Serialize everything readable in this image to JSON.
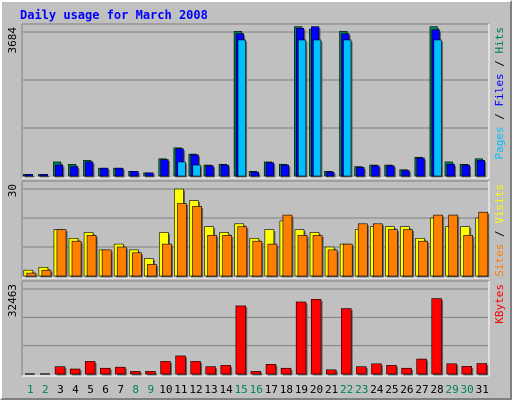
{
  "title": "Daily usage for March 2008",
  "colors": {
    "title": "#0000ff",
    "hits": "#00805c",
    "files": "#0000ff",
    "pages": "#00c0ff",
    "visits": "#ffff00",
    "sites": "#ff8000",
    "kbytes": "#ff0000",
    "weekday_label": "#000000",
    "weekend_label": "#00805c"
  },
  "panels": {
    "hits_files_pages": {
      "max_label": "3684",
      "legend": [
        {
          "text": "Pages",
          "color": "#00c0ff"
        },
        {
          "text": " / ",
          "color": "#000000"
        },
        {
          "text": "Files",
          "color": "#0000ff"
        },
        {
          "text": " / ",
          "color": "#000000"
        },
        {
          "text": "Hits",
          "color": "#00805c"
        }
      ]
    },
    "visits_sites": {
      "max_label": "30",
      "legend": [
        {
          "text": "Sites",
          "color": "#ff8000"
        },
        {
          "text": " / ",
          "color": "#000000"
        },
        {
          "text": "Visits",
          "color": "#ffff00"
        }
      ]
    },
    "kbytes": {
      "max_label": "32463",
      "legend": [
        {
          "text": "KBytes",
          "color": "#ff0000"
        }
      ]
    }
  },
  "chart_data": {
    "type": "bar",
    "title": "Daily usage for March 2008",
    "categories": [
      "1",
      "2",
      "3",
      "4",
      "5",
      "6",
      "7",
      "8",
      "9",
      "10",
      "11",
      "12",
      "13",
      "14",
      "15",
      "16",
      "17",
      "18",
      "19",
      "20",
      "21",
      "22",
      "23",
      "24",
      "25",
      "26",
      "27",
      "28",
      "29",
      "30",
      "31"
    ],
    "weekend_days": [
      "1",
      "2",
      "8",
      "9",
      "15",
      "16",
      "22",
      "23",
      "29",
      "30"
    ],
    "panels": [
      {
        "name": "Hits / Files / Pages",
        "ylim": [
          0,
          3684
        ],
        "series": [
          {
            "name": "Hits",
            "values": [
              40,
              40,
              360,
              300,
              400,
              200,
              200,
              120,
              80,
              440,
              720,
              560,
              280,
              300,
              3700,
              120,
              360,
              300,
              3820,
              3760,
              120,
              3700,
              240,
              280,
              280,
              160,
              480,
              3820,
              360,
              300,
              440
            ]
          },
          {
            "name": "Files",
            "values": [
              40,
              40,
              280,
              240,
              360,
              200,
              200,
              120,
              80,
              420,
              700,
              540,
              260,
              280,
              3640,
              100,
              340,
              280,
              3780,
              3820,
              100,
              3640,
              220,
              260,
              260,
              140,
              460,
              3740,
              300,
              280,
              400
            ]
          },
          {
            "name": "Pages",
            "values": [
              0,
              0,
              0,
              0,
              0,
              0,
              0,
              0,
              0,
              0,
              360,
              280,
              0,
              0,
              3480,
              0,
              0,
              0,
              3480,
              3480,
              0,
              3480,
              0,
              0,
              0,
              0,
              0,
              3480,
              0,
              0,
              0
            ]
          }
        ]
      },
      {
        "name": "Sites / Visits",
        "ylim": [
          0,
          30
        ],
        "series": [
          {
            "name": "Visits",
            "values": [
              2,
              3,
              16,
              13,
              15,
              9,
              11,
              9,
              6,
              15,
              30,
              26,
              17,
              15,
              18,
              13,
              16,
              19,
              16,
              15,
              10,
              11,
              16,
              17,
              17,
              17,
              13,
              20,
              17,
              17,
              20
            ]
          },
          {
            "name": "Sites",
            "values": [
              1,
              2,
              16,
              12,
              14,
              9,
              10,
              8,
              4,
              11,
              25,
              24,
              14,
              14,
              17,
              12,
              11,
              21,
              14,
              14,
              9,
              11,
              18,
              18,
              16,
              16,
              12,
              21,
              21,
              14,
              22
            ]
          }
        ]
      },
      {
        "name": "KBytes",
        "ylim": [
          0,
          32463
        ],
        "series": [
          {
            "name": "KBytes",
            "values": [
              0,
              0,
              2800,
              1900,
              4800,
              2200,
              2600,
              1000,
              1000,
              4800,
              6900,
              4800,
              2800,
              3300,
              26000,
              1000,
              3700,
              2200,
              27500,
              28500,
              1600,
              25000,
              2800,
              3900,
              3300,
              2200,
              5700,
              28800,
              3900,
              2900,
              4000
            ]
          }
        ]
      }
    ]
  }
}
